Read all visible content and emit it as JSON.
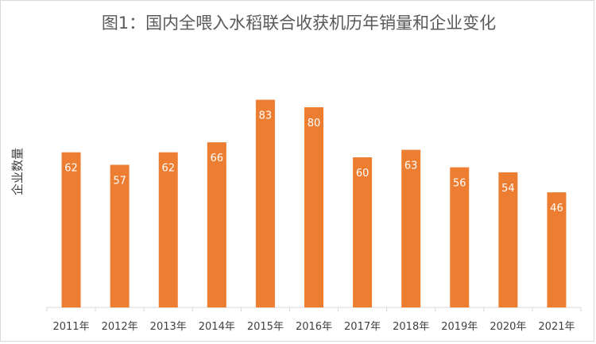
{
  "chart_data": {
    "type": "bar",
    "title": "图1：国内全喂入水稻联合收获机历年销量和企业变化",
    "xlabel": "",
    "ylabel": "企业数量",
    "categories": [
      "2011年",
      "2012年",
      "2013年",
      "2014年",
      "2015年",
      "2016年",
      "2017年",
      "2018年",
      "2019年",
      "2020年",
      "2021年"
    ],
    "series": [
      {
        "values": [
          62,
          57,
          62,
          66,
          83,
          80,
          60,
          63,
          56,
          54,
          46
        ],
        "color": "#ed7d31"
      }
    ],
    "ylim": [
      0,
      90
    ],
    "data_labels": true,
    "grid": false,
    "legend": "none"
  }
}
